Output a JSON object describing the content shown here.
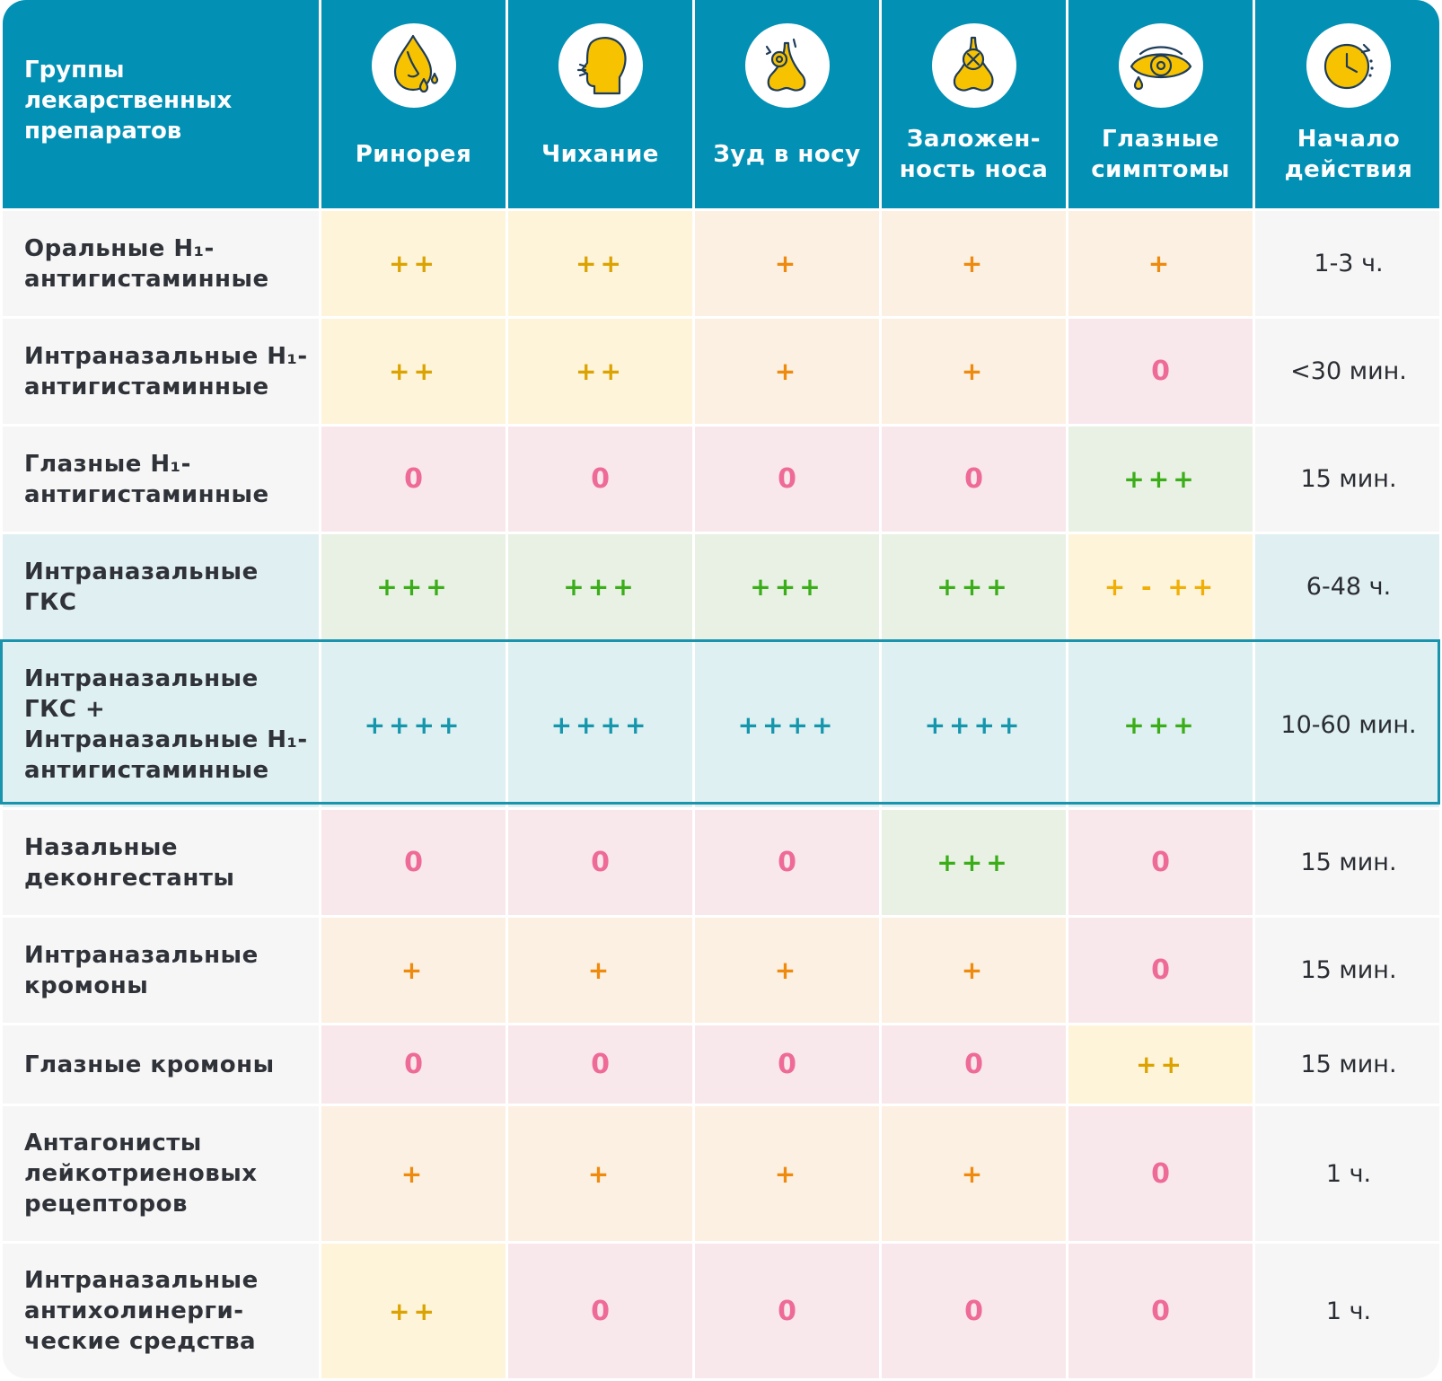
{
  "header": {
    "first": "Группы\nлекарственных\nпрепаратов",
    "columns": [
      {
        "label": "Ринорея",
        "icon": "runny-nose-icon"
      },
      {
        "label": "Чихание",
        "icon": "sneeze-icon"
      },
      {
        "label": "Зуд в носу",
        "icon": "itchy-nose-icon"
      },
      {
        "label": "Заложен-\nность носа",
        "icon": "blocked-nose-icon"
      },
      {
        "label": "Глазные\nсимптомы",
        "icon": "eye-icon"
      },
      {
        "label": "Начало\nдействия",
        "icon": "clock-icon"
      }
    ]
  },
  "rows": [
    {
      "label": "Оральные H₁-\nантигистаминные",
      "values": [
        "++",
        "++",
        "+",
        "+",
        "+"
      ],
      "onset": "1-3 ч."
    },
    {
      "label": "Интраназальные H₁-\nантигистаминные",
      "values": [
        "++",
        "++",
        "+",
        "+",
        "0"
      ],
      "onset": "<30 мин."
    },
    {
      "label": "Глазные H₁-\nантигистаминные",
      "values": [
        "0",
        "0",
        "0",
        "0",
        "+++"
      ],
      "onset": "15 мин."
    },
    {
      "label": "Интраназальные\nГКС",
      "values": [
        "+++",
        "+++",
        "+++",
        "+++",
        "+ - ++"
      ],
      "onset": "6-48 ч."
    },
    {
      "label": "Интраназальные\nГКС +\nИнтраназальные H₁-\nантигистаминные",
      "values": [
        "++++",
        "++++",
        "++++",
        "++++",
        "+++"
      ],
      "onset": "10-60 мин."
    },
    {
      "label": "Назальные\nдеконгестанты",
      "values": [
        "0",
        "0",
        "0",
        "+++",
        "0"
      ],
      "onset": "15 мин."
    },
    {
      "label": "Интраназальные\nкромоны",
      "values": [
        "+",
        "+",
        "+",
        "+",
        "0"
      ],
      "onset": "15 мин."
    },
    {
      "label": "Глазные кромоны",
      "values": [
        "0",
        "0",
        "0",
        "0",
        "++"
      ],
      "onset": "15 мин."
    },
    {
      "label": "Антагонисты\nлейкотриеновых\nрецепторов",
      "values": [
        "+",
        "+",
        "+",
        "+",
        "0"
      ],
      "onset": "1 ч."
    },
    {
      "label": "Интраназальные\nантихолинерги-\nческие средства",
      "values": [
        "++",
        "0",
        "0",
        "0",
        "0"
      ],
      "onset": "1 ч."
    }
  ],
  "colors": {
    "header_bg": "#0290b5",
    "highlight_border": "#1a93ad",
    "0": {
      "bg": "#f8e8ec",
      "fg": "#ee6b97"
    },
    "+": {
      "bg": "#fcf0e2",
      "fg": "#ee8a0e"
    },
    "++": {
      "bg": "#fdf4da",
      "fg": "#dca300"
    },
    "+++": {
      "bg": "#e8f1e4",
      "fg": "#3aad19"
    },
    "++++": {
      "bg": "#def0f1",
      "fg": "#1596ad"
    },
    "+ - ++": {
      "bg": "#fdf4da",
      "fg": "#f1ae06"
    }
  }
}
